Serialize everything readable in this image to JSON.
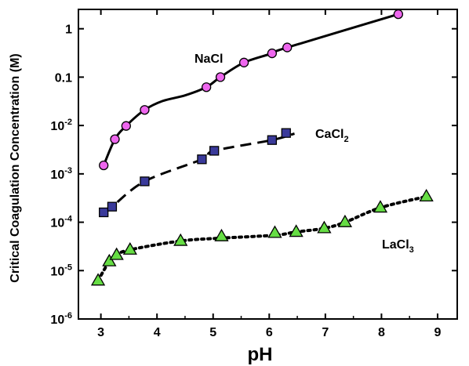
{
  "chart_data": {
    "type": "scatter",
    "xlabel": "pH",
    "ylabel": "Critical Coagulation Concentration  (M)",
    "xlim": [
      2.6,
      9.35
    ],
    "ylim_log10": [
      -6,
      0.4
    ],
    "y_scale": "log",
    "x_ticks": [
      3,
      4,
      5,
      6,
      7,
      8,
      9
    ],
    "y_ticks": [
      {
        "value": 1,
        "base": "1",
        "exp": ""
      },
      {
        "value": 0.1,
        "base": "0.1",
        "exp": ""
      },
      {
        "value": 0.01,
        "base": "10",
        "exp": "-2"
      },
      {
        "value": 0.001,
        "base": "10",
        "exp": "-3"
      },
      {
        "value": 0.0001,
        "base": "10",
        "exp": "-4"
      },
      {
        "value": 1e-05,
        "base": "10",
        "exp": "-5"
      },
      {
        "value": 1e-06,
        "base": "10",
        "exp": "-6"
      }
    ],
    "series": [
      {
        "name": "NaCl",
        "name_sub": "",
        "marker": "circle",
        "color": "#ee66ee",
        "line": "solid",
        "x": [
          3.05,
          3.25,
          3.45,
          3.78,
          4.88,
          5.13,
          5.55,
          6.05,
          6.32,
          8.3
        ],
        "y": [
          0.0015,
          0.0052,
          0.0098,
          0.021,
          0.062,
          0.1,
          0.2,
          0.31,
          0.41,
          2.0
        ],
        "curve_x": [
          3.05,
          3.25,
          3.45,
          3.78,
          4.1,
          4.5,
          4.88,
          5.13,
          5.55,
          6.05,
          6.32,
          8.3
        ],
        "curve_y": [
          0.0015,
          0.0052,
          0.0098,
          0.021,
          0.032,
          0.042,
          0.062,
          0.1,
          0.2,
          0.31,
          0.41,
          2.0
        ]
      },
      {
        "name": "CaCl",
        "name_sub": "2",
        "marker": "square",
        "color": "#3a3a9a",
        "line": "dashed",
        "x": [
          3.05,
          3.2,
          3.78,
          4.8,
          5.02,
          6.05,
          6.3
        ],
        "y": [
          0.00016,
          0.00021,
          0.0007,
          0.002,
          0.003,
          0.005,
          0.007
        ],
        "curve_x": [
          3.05,
          3.2,
          3.78,
          4.8,
          5.02,
          6.05,
          6.45
        ],
        "curve_y": [
          0.00016,
          0.00021,
          0.0007,
          0.002,
          0.003,
          0.005,
          0.0068
        ]
      },
      {
        "name": "LaCl",
        "name_sub": "3",
        "marker": "triangle",
        "color": "#66dd44",
        "line": "dotted",
        "x": [
          2.95,
          3.15,
          3.28,
          3.52,
          4.42,
          5.15,
          6.1,
          6.48,
          6.98,
          7.35,
          7.98,
          8.8
        ],
        "y": [
          6.2e-06,
          1.55e-05,
          2.1e-05,
          2.7e-05,
          4.1e-05,
          5.1e-05,
          6e-05,
          6.3e-05,
          7.5e-05,
          0.0001,
          0.0002,
          0.00034
        ],
        "curve_x": [
          2.95,
          3.15,
          3.28,
          3.52,
          4.42,
          5.15,
          6.1,
          6.48,
          6.98,
          7.35,
          7.98,
          8.8
        ],
        "curve_y": [
          6.2e-06,
          1.55e-05,
          2.1e-05,
          2.7e-05,
          4.1e-05,
          4.7e-05,
          5.4e-05,
          6.3e-05,
          7.5e-05,
          0.0001,
          0.0002,
          0.00034
        ]
      }
    ]
  }
}
